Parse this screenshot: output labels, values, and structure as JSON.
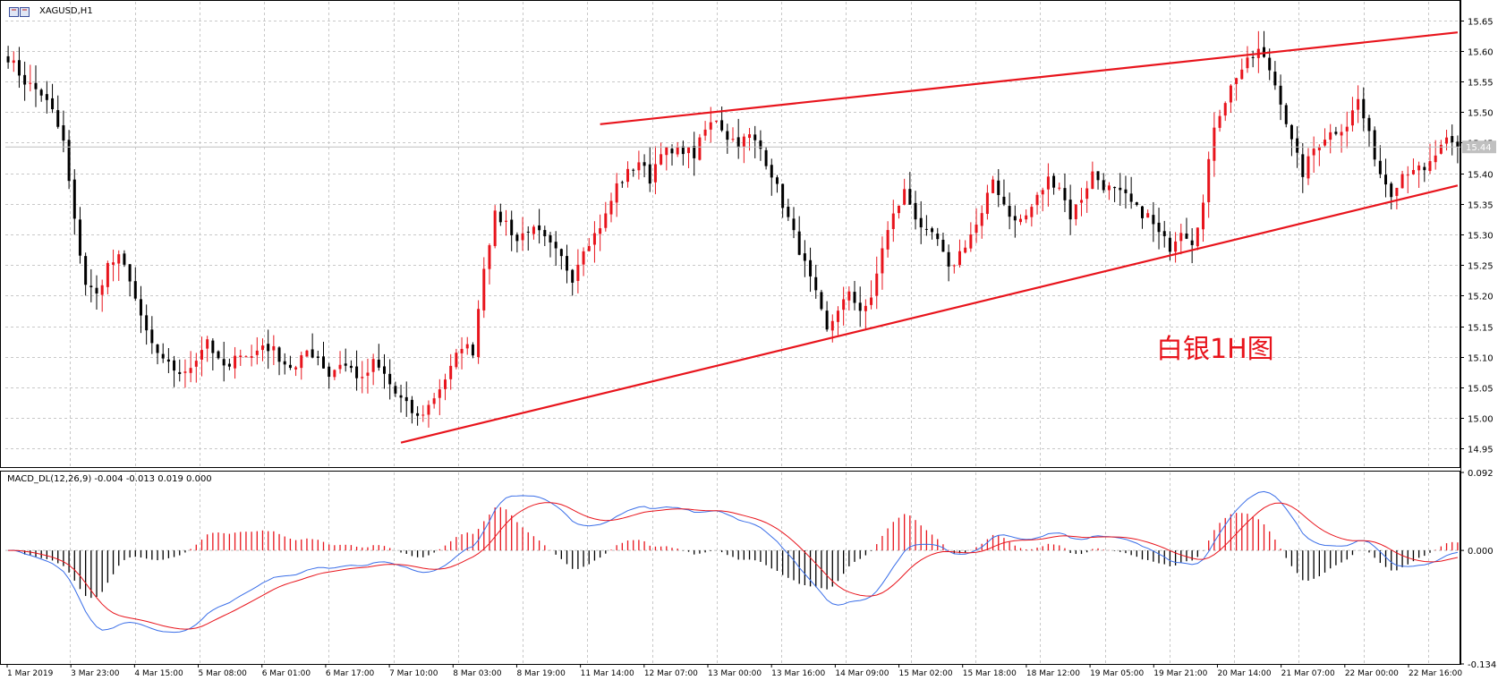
{
  "window": {
    "symbol_label": "XAGUSD,H1",
    "icon": "chart-window-icon"
  },
  "annotation": {
    "text": "白银1H图",
    "color": "#e8141c"
  },
  "macd": {
    "label": "MACD_DL(12,26,9) -0.004 -0.013 0.019 0.000",
    "axis": [
      "0.092",
      "0.000",
      "-0.134"
    ]
  },
  "price_marker": "15.44",
  "colors": {
    "bull": "#e8141c",
    "bear": "#000000",
    "trend": "#e8141c",
    "macd_fast": "#3a6ee8",
    "macd_signal": "#e8141c"
  },
  "chart_data": {
    "type": "candlestick",
    "symbol": "XAGUSD",
    "timeframe": "H1",
    "ylim": [
      14.92,
      15.68
    ],
    "y_ticks": [
      "15.65",
      "15.60",
      "15.55",
      "15.50",
      "15.45",
      "15.40",
      "15.35",
      "15.30",
      "15.25",
      "15.20",
      "15.15",
      "15.10",
      "15.05",
      "15.00",
      "14.95"
    ],
    "x_ticks": [
      "1 Mar 2019",
      "3 Mar 23:00",
      "4 Mar 15:00",
      "5 Mar 08:00",
      "6 Mar 01:00",
      "6 Mar 17:00",
      "7 Mar 10:00",
      "8 Mar 03:00",
      "8 Mar 19:00",
      "11 Mar 14:00",
      "12 Mar 07:00",
      "13 Mar 00:00",
      "13 Mar 16:00",
      "14 Mar 09:00",
      "15 Mar 02:00",
      "15 Mar 18:00",
      "18 Mar 12:00",
      "19 Mar 05:00",
      "19 Mar 21:00",
      "20 Mar 14:00",
      "21 Mar 07:00",
      "22 Mar 00:00",
      "22 Mar 16:00"
    ],
    "close_anchors": [
      [
        0,
        15.59
      ],
      [
        3,
        15.55
      ],
      [
        6,
        15.53
      ],
      [
        8,
        15.5
      ],
      [
        10,
        15.45
      ],
      [
        12,
        15.32
      ],
      [
        14,
        15.22
      ],
      [
        16,
        15.2
      ],
      [
        18,
        15.25
      ],
      [
        20,
        15.26
      ],
      [
        22,
        15.23
      ],
      [
        24,
        15.16
      ],
      [
        26,
        15.12
      ],
      [
        28,
        15.09
      ],
      [
        30,
        15.08
      ],
      [
        32,
        15.07
      ],
      [
        34,
        15.1
      ],
      [
        36,
        15.13
      ],
      [
        38,
        15.09
      ],
      [
        40,
        15.08
      ],
      [
        42,
        15.11
      ],
      [
        44,
        15.1
      ],
      [
        46,
        15.12
      ],
      [
        48,
        15.11
      ],
      [
        50,
        15.09
      ],
      [
        52,
        15.08
      ],
      [
        54,
        15.11
      ],
      [
        56,
        15.1
      ],
      [
        58,
        15.07
      ],
      [
        60,
        15.09
      ],
      [
        62,
        15.08
      ],
      [
        64,
        15.06
      ],
      [
        66,
        15.09
      ],
      [
        68,
        15.07
      ],
      [
        70,
        15.04
      ],
      [
        72,
        15.02
      ],
      [
        74,
        15.0
      ],
      [
        76,
        15.02
      ],
      [
        78,
        15.05
      ],
      [
        80,
        15.08
      ],
      [
        82,
        15.12
      ],
      [
        84,
        15.11
      ],
      [
        86,
        15.25
      ],
      [
        88,
        15.33
      ],
      [
        90,
        15.32
      ],
      [
        92,
        15.29
      ],
      [
        94,
        15.31
      ],
      [
        96,
        15.3
      ],
      [
        98,
        15.28
      ],
      [
        100,
        15.26
      ],
      [
        102,
        15.23
      ],
      [
        104,
        15.28
      ],
      [
        106,
        15.3
      ],
      [
        108,
        15.33
      ],
      [
        110,
        15.38
      ],
      [
        112,
        15.4
      ],
      [
        114,
        15.42
      ],
      [
        116,
        15.39
      ],
      [
        118,
        15.44
      ],
      [
        120,
        15.43
      ],
      [
        122,
        15.44
      ],
      [
        124,
        15.43
      ],
      [
        126,
        15.47
      ],
      [
        128,
        15.49
      ],
      [
        130,
        15.46
      ],
      [
        132,
        15.45
      ],
      [
        134,
        15.46
      ],
      [
        136,
        15.44
      ],
      [
        138,
        15.4
      ],
      [
        140,
        15.35
      ],
      [
        142,
        15.3
      ],
      [
        144,
        15.25
      ],
      [
        146,
        15.2
      ],
      [
        148,
        15.14
      ],
      [
        150,
        15.18
      ],
      [
        152,
        15.2
      ],
      [
        154,
        15.18
      ],
      [
        156,
        15.19
      ],
      [
        158,
        15.28
      ],
      [
        160,
        15.33
      ],
      [
        162,
        15.37
      ],
      [
        164,
        15.33
      ],
      [
        166,
        15.3
      ],
      [
        168,
        15.29
      ],
      [
        170,
        15.24
      ],
      [
        172,
        15.27
      ],
      [
        174,
        15.3
      ],
      [
        176,
        15.33
      ],
      [
        178,
        15.39
      ],
      [
        180,
        15.35
      ],
      [
        182,
        15.32
      ],
      [
        184,
        15.33
      ],
      [
        186,
        15.36
      ],
      [
        188,
        15.39
      ],
      [
        190,
        15.38
      ],
      [
        192,
        15.33
      ],
      [
        194,
        15.36
      ],
      [
        196,
        15.4
      ],
      [
        198,
        15.38
      ],
      [
        200,
        15.37
      ],
      [
        202,
        15.36
      ],
      [
        204,
        15.34
      ],
      [
        206,
        15.33
      ],
      [
        208,
        15.3
      ],
      [
        210,
        15.28
      ],
      [
        212,
        15.31
      ],
      [
        214,
        15.29
      ],
      [
        216,
        15.35
      ],
      [
        218,
        15.48
      ],
      [
        220,
        15.52
      ],
      [
        222,
        15.56
      ],
      [
        224,
        15.58
      ],
      [
        226,
        15.6
      ],
      [
        228,
        15.57
      ],
      [
        230,
        15.52
      ],
      [
        232,
        15.45
      ],
      [
        234,
        15.4
      ],
      [
        236,
        15.44
      ],
      [
        238,
        15.46
      ],
      [
        240,
        15.47
      ],
      [
        242,
        15.48
      ],
      [
        244,
        15.52
      ],
      [
        246,
        15.46
      ],
      [
        248,
        15.4
      ],
      [
        250,
        15.37
      ],
      [
        252,
        15.4
      ],
      [
        254,
        15.41
      ],
      [
        256,
        15.4
      ],
      [
        258,
        15.43
      ],
      [
        260,
        15.45
      ],
      [
        262,
        15.44
      ]
    ],
    "candle_count": 263,
    "trendlines": [
      {
        "name": "upper-channel",
        "from": [
          "11 Mar 14:00",
          15.48
        ],
        "to": [
          "22 Mar 16:00",
          15.63
        ]
      },
      {
        "name": "lower-channel",
        "from": [
          "7 Mar 10:00",
          14.96
        ],
        "to": [
          "22 Mar 16:00",
          15.38
        ]
      }
    ],
    "macd": {
      "fast": 12,
      "slow": 26,
      "signal": 9,
      "ylim": [
        -0.134,
        0.092
      ],
      "values": {
        "main": -0.004,
        "signal": -0.013,
        "osma": 0.019,
        "extra": 0.0
      }
    }
  }
}
